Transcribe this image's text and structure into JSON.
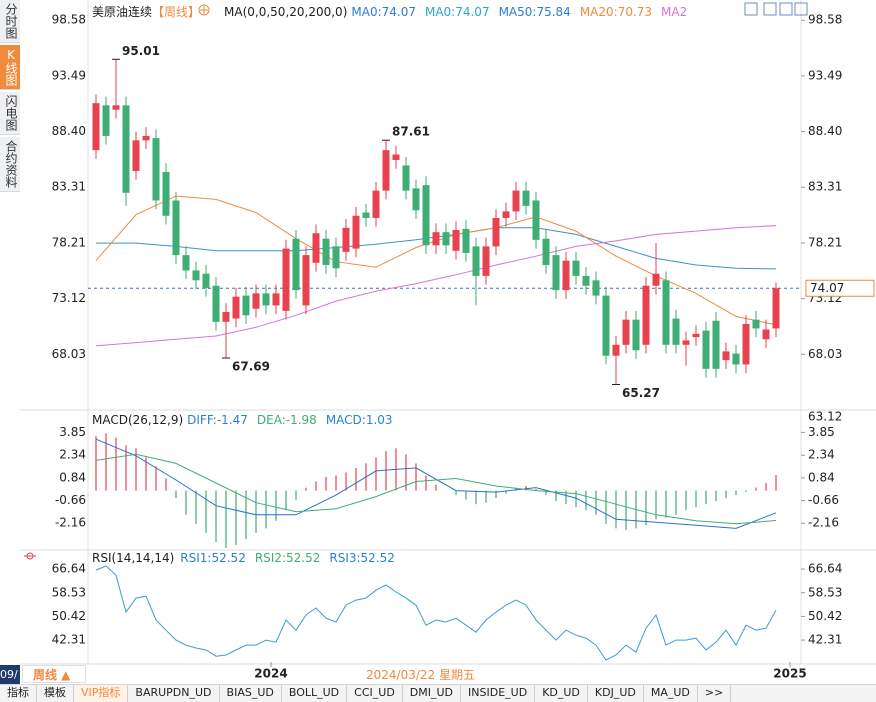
{
  "sidebar_tabs": [
    "分时图",
    "K线图",
    "闪电图",
    "合约资料"
  ],
  "active_tab": 1,
  "chart_data": [
    {
      "type": "candlestick",
      "title": "美原油连续",
      "period": "【周线】",
      "indicator": "MA(0,0,50,20,200,0)",
      "legend": [
        {
          "label": "MA0:74.07",
          "color": "#2a7fd4"
        },
        {
          "label": "MA0:74.07",
          "color": "#27a7c9"
        },
        {
          "label": "MA50:75.84",
          "color": "#2a7fd4"
        },
        {
          "label": "MA20:70.73",
          "color": "#f08a3c"
        },
        {
          "label": "MA2",
          "color": "#d275d8"
        }
      ],
      "up_color": "#e8414f",
      "down_color": "#3fae74",
      "open": [
        86.7,
        90.8,
        90.4,
        90.8,
        84.8,
        87.6,
        87.8,
        84.7,
        82.1,
        77.1,
        75.7,
        75.4,
        74.3,
        71.0,
        71.3,
        73.4,
        72.2,
        73.6,
        72.5,
        72.0,
        78.6,
        72.5,
        76.4,
        78.6,
        77.9,
        77.4,
        77.7,
        81.0,
        80.5,
        83.0,
        85.8,
        85.3,
        83.2,
        83.5,
        78.0,
        79.2,
        77.5,
        79.5,
        77.9,
        75.2,
        77.9,
        80.5,
        81.1,
        83.0,
        82.1,
        78.6,
        77.1,
        73.9,
        76.6,
        75.2,
        74.8,
        73.4,
        67.9,
        68.9,
        71.2,
        68.9,
        74.3,
        74.8,
        71.3,
        68.9,
        69.6,
        70.2,
        71.1,
        67.5,
        68.1,
        67.1,
        71.2,
        69.4,
        70.4
      ],
      "high": [
        91.8,
        91.6,
        95.01,
        91.6,
        88.4,
        88.8,
        88.6,
        85.5,
        82.9,
        77.9,
        76.5,
        76.2,
        75.1,
        72.7,
        74.1,
        74.2,
        74.4,
        74.4,
        74.4,
        78.5,
        79.4,
        77.9,
        79.9,
        79.4,
        78.7,
        80.4,
        81.5,
        81.8,
        83.8,
        87.61,
        87.1,
        86.1,
        84.0,
        84.3,
        80.0,
        80.0,
        80.2,
        80.3,
        78.7,
        78.7,
        81.3,
        81.9,
        83.8,
        83.8,
        82.9,
        79.4,
        77.9,
        77.4,
        77.4,
        76.0,
        75.6,
        74.2,
        69.7,
        72.0,
        72.0,
        75.1,
        78.2,
        75.6,
        72.1,
        70.1,
        70.7,
        71.0,
        71.9,
        69.1,
        68.9,
        71.6,
        72.0,
        71.2,
        74.6
      ],
      "low": [
        85.9,
        87.2,
        89.6,
        81.6,
        84.0,
        86.8,
        81.3,
        79.9,
        76.3,
        74.9,
        74.0,
        73.3,
        70.2,
        67.69,
        70.5,
        70.8,
        71.4,
        71.7,
        71.7,
        71.2,
        73.1,
        71.7,
        75.6,
        75.4,
        75.1,
        76.6,
        76.9,
        79.7,
        79.7,
        82.2,
        85.0,
        82.2,
        80.4,
        77.2,
        77.2,
        77.2,
        76.7,
        76.5,
        72.5,
        74.4,
        77.1,
        79.7,
        80.3,
        80.8,
        77.7,
        75.4,
        73.1,
        73.1,
        74.4,
        73.5,
        72.6,
        67.1,
        65.27,
        68.1,
        67.6,
        68.1,
        73.5,
        68.1,
        68.1,
        67.0,
        68.8,
        65.9,
        65.9,
        66.7,
        66.3,
        66.3,
        69.6,
        68.6,
        69.6
      ],
      "close": [
        91.0,
        88.0,
        90.8,
        82.8,
        87.6,
        88.0,
        82.1,
        80.7,
        77.1,
        75.7,
        74.8,
        74.1,
        71.0,
        71.9,
        73.3,
        71.6,
        73.6,
        72.5,
        73.6,
        77.7,
        73.9,
        77.1,
        79.1,
        76.2,
        75.9,
        79.6,
        80.7,
        80.5,
        83.0,
        86.7,
        86.3,
        83.0,
        81.2,
        78.0,
        79.2,
        78.0,
        79.4,
        77.3,
        75.2,
        77.9,
        80.5,
        81.1,
        83.0,
        81.6,
        78.5,
        76.2,
        73.9,
        76.6,
        75.2,
        74.3,
        73.4,
        67.9,
        68.9,
        71.2,
        68.4,
        74.3,
        75.4,
        68.9,
        68.9,
        69.3,
        69.9,
        66.7,
        66.7,
        68.3,
        67.1,
        70.8,
        70.4,
        70.3,
        74.07
      ],
      "series": [
        {
          "color": "#3b91c4",
          "x": [
            0,
            4,
            8,
            12,
            16,
            20,
            24,
            28,
            32,
            36,
            40,
            44,
            48,
            52,
            56,
            60,
            64,
            68
          ],
          "values": [
            78.2,
            78.2,
            77.9,
            77.5,
            77.5,
            77.5,
            77.8,
            78.1,
            78.5,
            79.0,
            79.6,
            79.6,
            79.0,
            77.9,
            76.8,
            76.2,
            75.9,
            75.84
          ]
        },
        {
          "color": "#f08a3c",
          "x": [
            0,
            4,
            8,
            12,
            16,
            20,
            24,
            28,
            32,
            36,
            40,
            44,
            48,
            52,
            56,
            60,
            64,
            68
          ],
          "values": [
            76.6,
            80.8,
            82.5,
            82.2,
            81.0,
            78.6,
            76.5,
            76.0,
            77.8,
            79.0,
            79.6,
            80.6,
            79.3,
            77.0,
            75.2,
            73.6,
            71.5,
            70.73
          ]
        },
        {
          "color": "#d275d8",
          "x": [
            0,
            4,
            8,
            12,
            16,
            20,
            24,
            28,
            32,
            36,
            40,
            44,
            48,
            52,
            56,
            60,
            64,
            68
          ],
          "values": [
            68.8,
            69.1,
            69.4,
            69.7,
            70.5,
            71.6,
            72.9,
            73.8,
            74.5,
            75.3,
            76.2,
            77.0,
            77.9,
            78.4,
            79.0,
            79.3,
            79.6,
            79.8
          ]
        }
      ],
      "extremes": [
        {
          "x": 2,
          "value": 95.01,
          "color": "#e8414f"
        },
        {
          "x": 29,
          "value": 87.61,
          "color": "#e8414f"
        },
        {
          "x": 13,
          "value": 67.69,
          "color": "#3fae74"
        },
        {
          "x": 52,
          "value": 65.27,
          "color": "#3fae74"
        }
      ],
      "last_price": 74.07,
      "last_price_color": "#f08a3c",
      "xlim": [
        -0.8,
        70.4
      ],
      "ylim": [
        63.12,
        99.7
      ],
      "yticks": [
        98.58,
        93.49,
        {
          "value": 88.4,
          "label": "88.40"
        },
        83.31,
        78.21,
        73.12,
        68.03
      ]
    },
    {
      "type": "macd",
      "indicator": "MACD(26,12,9)",
      "legend": [
        {
          "label": "DIFF:-1.47",
          "color": "#2a7fd4"
        },
        {
          "label": "DEA:-1.98",
          "color": "#3fae74"
        },
        {
          "label": "MACD:1.03",
          "color": "#2a7fd4"
        }
      ],
      "up_color": "#e8414f",
      "down_color": "#3fae74",
      "values": [
        3.6,
        3.8,
        3.5,
        3.0,
        2.8,
        2.2,
        1.6,
        0.8,
        -0.5,
        -1.6,
        -2.2,
        -2.8,
        -3.4,
        -3.8,
        -3.6,
        -3.2,
        -2.8,
        -2.5,
        -2.0,
        -1.3,
        -0.6,
        0.2,
        0.6,
        0.9,
        1.0,
        1.2,
        1.5,
        1.8,
        2.2,
        2.6,
        2.8,
        2.4,
        1.8,
        1.0,
        0.4,
        0.0,
        -0.3,
        -0.6,
        -0.9,
        -0.8,
        -0.5,
        -0.2,
        0.2,
        0.3,
        0.1,
        -0.3,
        -0.7,
        -0.9,
        -1.1,
        -1.3,
        -1.6,
        -2.2,
        -2.5,
        -2.6,
        -2.5,
        -2.3,
        -1.9,
        -1.8,
        -1.6,
        -1.3,
        -1.1,
        -0.9,
        -0.7,
        -0.5,
        -0.3,
        -0.1,
        0.2,
        0.5,
        1.03
      ],
      "series": [
        {
          "color": "#2a6fd0",
          "x": [
            0,
            4,
            8,
            12,
            16,
            20,
            24,
            28,
            32,
            36,
            40,
            44,
            48,
            52,
            56,
            60,
            64,
            68
          ],
          "values": [
            3.4,
            2.3,
            0.7,
            -1.0,
            -1.6,
            -1.6,
            -0.3,
            1.3,
            1.5,
            0.0,
            -0.1,
            0.2,
            -0.5,
            -1.9,
            -2.1,
            -2.3,
            -2.5,
            -1.47
          ]
        },
        {
          "color": "#3fae74",
          "x": [
            0,
            4,
            8,
            12,
            16,
            20,
            24,
            28,
            32,
            36,
            40,
            44,
            48,
            52,
            56,
            60,
            64,
            68
          ],
          "values": [
            2.0,
            2.4,
            1.8,
            0.5,
            -0.8,
            -1.4,
            -1.2,
            -0.4,
            0.6,
            0.8,
            0.3,
            0.0,
            -0.2,
            -0.9,
            -1.6,
            -2.0,
            -2.2,
            -1.98
          ]
        }
      ],
      "ylim": [
        -3.8,
        5.2
      ],
      "yticks": [
        3.85,
        2.34,
        0.84,
        -0.66,
        -2.16
      ]
    },
    {
      "type": "line",
      "indicator": "RSI(14,14,14)",
      "legend": [
        {
          "label": "RSI1:52.52",
          "color": "#2a7fd4"
        },
        {
          "label": "RSI2:52.52",
          "color": "#3fae74"
        },
        {
          "label": "RSI3:52.52",
          "color": "#2a7fd4"
        }
      ],
      "series": [
        {
          "color": "#3a9ad9",
          "values": [
            66.3,
            67.7,
            64.6,
            51.9,
            56.7,
            57.4,
            49.2,
            45.7,
            42.3,
            40.6,
            39.6,
            38.9,
            36.8,
            37.2,
            38.9,
            40.6,
            40.6,
            42.3,
            41.6,
            49.2,
            45.7,
            50.9,
            53.3,
            49.8,
            48.5,
            54.3,
            56.0,
            56.7,
            59.4,
            61.2,
            58.8,
            56.7,
            54.3,
            47.4,
            49.2,
            48.5,
            49.8,
            47.4,
            45.0,
            49.2,
            51.9,
            54.3,
            56.0,
            54.3,
            49.2,
            45.7,
            42.3,
            45.7,
            44.0,
            43.0,
            40.6,
            35.5,
            37.2,
            40.6,
            38.2,
            46.4,
            50.9,
            40.6,
            42.3,
            42.3,
            43.0,
            38.9,
            41.6,
            45.7,
            40.6,
            47.4,
            45.7,
            46.4,
            52.52
          ]
        }
      ],
      "ylim": [
        34.8,
        72.5
      ],
      "yticks": [
        66.64,
        58.53,
        50.42,
        42.31
      ],
      "xticks": [
        {
          "value": 17.5,
          "label": "2024"
        },
        {
          "value": 69.4,
          "label": "2025"
        }
      ]
    }
  ],
  "bottom_bar": {
    "left_stub": "09/",
    "period": "周线 ▲",
    "cursor_date": "2024/03/22 星期五"
  },
  "indicator_tabs": [
    "指标",
    "模板",
    "VIP指标",
    "BARUPDN_UD",
    "BIAS_UD",
    "BOLL_UD",
    "CCI_UD",
    "DMI_UD",
    "INSIDE_UD",
    "KD_UD",
    "KDJ_UD",
    "MA_UD",
    ">>"
  ],
  "active_indicator_tab": 2
}
